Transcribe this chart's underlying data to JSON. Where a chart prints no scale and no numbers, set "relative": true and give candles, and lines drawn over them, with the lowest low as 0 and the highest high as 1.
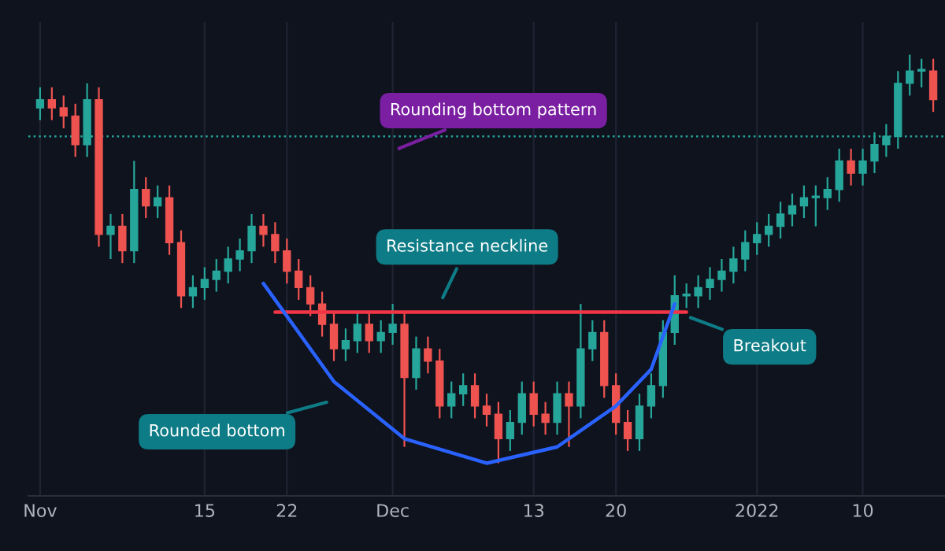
{
  "chart_data": {
    "type": "candlestick",
    "relative": true,
    "grid": "x",
    "legend": false,
    "tick_labels": "x",
    "x": [
      "2021-11-01",
      "2021-11-02",
      "2021-11-03",
      "2021-11-04",
      "2021-11-05",
      "2021-11-06",
      "2021-11-07",
      "2021-11-08",
      "2021-11-09",
      "2021-11-10",
      "2021-11-11",
      "2021-11-12",
      "2021-11-13",
      "2021-11-14",
      "2021-11-15",
      "2021-11-16",
      "2021-11-17",
      "2021-11-18",
      "2021-11-19",
      "2021-11-20",
      "2021-11-21",
      "2021-11-22",
      "2021-11-23",
      "2021-11-24",
      "2021-11-25",
      "2021-11-26",
      "2021-11-27",
      "2021-11-28",
      "2021-11-29",
      "2021-11-30",
      "2021-12-01",
      "2021-12-02",
      "2021-12-03",
      "2021-12-04",
      "2021-12-05",
      "2021-12-06",
      "2021-12-07",
      "2021-12-08",
      "2021-12-09",
      "2021-12-10",
      "2021-12-11",
      "2021-12-12",
      "2021-12-13",
      "2021-12-14",
      "2021-12-15",
      "2021-12-16",
      "2021-12-17",
      "2021-12-18",
      "2021-12-19",
      "2021-12-20",
      "2021-12-21",
      "2021-12-22",
      "2021-12-23",
      "2021-12-24",
      "2021-12-25",
      "2021-12-26",
      "2021-12-27",
      "2021-12-28",
      "2021-12-29",
      "2021-12-30",
      "2021-12-31",
      "2022-01-01",
      "2022-01-02",
      "2022-01-03",
      "2022-01-04",
      "2022-01-05",
      "2022-01-06",
      "2022-01-07",
      "2022-01-08",
      "2022-01-09",
      "2022-01-10",
      "2022-01-11",
      "2022-01-12",
      "2022-01-13",
      "2022-01-14",
      "2022-01-15",
      "2022-01-16"
    ],
    "ohlc": [
      [
        0.87,
        0.92,
        0.84,
        0.89
      ],
      [
        0.89,
        0.92,
        0.84,
        0.87
      ],
      [
        0.87,
        0.9,
        0.82,
        0.85
      ],
      [
        0.85,
        0.88,
        0.75,
        0.78
      ],
      [
        0.78,
        0.93,
        0.75,
        0.89
      ],
      [
        0.89,
        0.92,
        0.53,
        0.56
      ],
      [
        0.56,
        0.61,
        0.5,
        0.58
      ],
      [
        0.58,
        0.61,
        0.49,
        0.52
      ],
      [
        0.52,
        0.74,
        0.49,
        0.67
      ],
      [
        0.67,
        0.7,
        0.6,
        0.63
      ],
      [
        0.63,
        0.68,
        0.6,
        0.65
      ],
      [
        0.65,
        0.68,
        0.51,
        0.54
      ],
      [
        0.54,
        0.57,
        0.38,
        0.41
      ],
      [
        0.41,
        0.46,
        0.38,
        0.43
      ],
      [
        0.43,
        0.48,
        0.4,
        0.45
      ],
      [
        0.45,
        0.5,
        0.42,
        0.47
      ],
      [
        0.47,
        0.53,
        0.44,
        0.5
      ],
      [
        0.5,
        0.55,
        0.47,
        0.52
      ],
      [
        0.52,
        0.61,
        0.49,
        0.58
      ],
      [
        0.58,
        0.61,
        0.53,
        0.56
      ],
      [
        0.56,
        0.59,
        0.49,
        0.52
      ],
      [
        0.52,
        0.55,
        0.44,
        0.47
      ],
      [
        0.47,
        0.5,
        0.4,
        0.43
      ],
      [
        0.43,
        0.46,
        0.36,
        0.39
      ],
      [
        0.39,
        0.42,
        0.31,
        0.34
      ],
      [
        0.34,
        0.37,
        0.25,
        0.28
      ],
      [
        0.28,
        0.33,
        0.25,
        0.3
      ],
      [
        0.3,
        0.37,
        0.27,
        0.34
      ],
      [
        0.34,
        0.37,
        0.27,
        0.3
      ],
      [
        0.3,
        0.35,
        0.27,
        0.32
      ],
      [
        0.32,
        0.39,
        0.29,
        0.34
      ],
      [
        0.34,
        0.37,
        0.04,
        0.21
      ],
      [
        0.21,
        0.31,
        0.18,
        0.28
      ],
      [
        0.28,
        0.31,
        0.22,
        0.25
      ],
      [
        0.25,
        0.28,
        0.11,
        0.14
      ],
      [
        0.14,
        0.2,
        0.11,
        0.17
      ],
      [
        0.17,
        0.22,
        0.14,
        0.19
      ],
      [
        0.19,
        0.22,
        0.11,
        0.14
      ],
      [
        0.14,
        0.17,
        0.09,
        0.12
      ],
      [
        0.12,
        0.15,
        0.0,
        0.06
      ],
      [
        0.06,
        0.13,
        0.03,
        0.1
      ],
      [
        0.1,
        0.2,
        0.07,
        0.17
      ],
      [
        0.17,
        0.2,
        0.09,
        0.12
      ],
      [
        0.12,
        0.15,
        0.07,
        0.1
      ],
      [
        0.1,
        0.2,
        0.07,
        0.17
      ],
      [
        0.17,
        0.2,
        0.04,
        0.14
      ],
      [
        0.14,
        0.39,
        0.11,
        0.28
      ],
      [
        0.28,
        0.35,
        0.25,
        0.32
      ],
      [
        0.32,
        0.35,
        0.16,
        0.19
      ],
      [
        0.19,
        0.22,
        0.07,
        0.1
      ],
      [
        0.1,
        0.13,
        0.03,
        0.06
      ],
      [
        0.06,
        0.17,
        0.03,
        0.14
      ],
      [
        0.14,
        0.22,
        0.11,
        0.19
      ],
      [
        0.19,
        0.35,
        0.16,
        0.32
      ],
      [
        0.32,
        0.46,
        0.29,
        0.41
      ],
      [
        0.41,
        0.44,
        0.38,
        0.41
      ],
      [
        0.41,
        0.46,
        0.38,
        0.43
      ],
      [
        0.43,
        0.48,
        0.4,
        0.45
      ],
      [
        0.45,
        0.5,
        0.42,
        0.47
      ],
      [
        0.47,
        0.53,
        0.44,
        0.5
      ],
      [
        0.5,
        0.57,
        0.47,
        0.54
      ],
      [
        0.54,
        0.59,
        0.51,
        0.56
      ],
      [
        0.56,
        0.61,
        0.53,
        0.58
      ],
      [
        0.58,
        0.64,
        0.55,
        0.61
      ],
      [
        0.61,
        0.66,
        0.58,
        0.63
      ],
      [
        0.63,
        0.68,
        0.6,
        0.65
      ],
      [
        0.65,
        0.68,
        0.58,
        0.65
      ],
      [
        0.65,
        0.7,
        0.62,
        0.67
      ],
      [
        0.67,
        0.77,
        0.64,
        0.74
      ],
      [
        0.74,
        0.77,
        0.68,
        0.71
      ],
      [
        0.71,
        0.77,
        0.68,
        0.74
      ],
      [
        0.74,
        0.81,
        0.71,
        0.78
      ],
      [
        0.78,
        0.83,
        0.75,
        0.8
      ],
      [
        0.8,
        0.96,
        0.77,
        0.93
      ],
      [
        0.93,
        1.0,
        0.9,
        0.96
      ],
      [
        0.96,
        0.99,
        0.92,
        0.96
      ],
      [
        0.96,
        0.99,
        0.86,
        0.89
      ]
    ],
    "series": [
      {
        "type": "line",
        "color": "#f23645",
        "x": [
          "2021-11-21",
          "2021-12-26"
        ],
        "values": [
          0.37,
          0.37
        ]
      },
      {
        "type": "line",
        "color": "#2962ff",
        "x": [
          "2021-11-20",
          "2021-11-26",
          "2021-12-02",
          "2021-12-09",
          "2021-12-15",
          "2021-12-20",
          "2021-12-23",
          "2021-12-25"
        ],
        "values": [
          0.44,
          0.2,
          0.06,
          0.0,
          0.04,
          0.14,
          0.23,
          0.39
        ]
      }
    ],
    "ref_lines": [
      {
        "axis": "y",
        "value": 0.8,
        "label": null,
        "color": "#26a69a",
        "line_style": "dotted"
      }
    ],
    "xlim": [
      "2021-10-31",
      "2022-01-17"
    ],
    "xticks": [
      {
        "value": "2021-11-01",
        "label": "Nov"
      },
      {
        "value": "2021-11-15",
        "label": "15"
      },
      {
        "value": "2021-11-22",
        "label": "22"
      },
      {
        "value": "2021-12-01",
        "label": "Dec"
      },
      {
        "value": "2021-12-13",
        "label": "13"
      },
      {
        "value": "2021-12-20",
        "label": "20"
      },
      {
        "value": "2022-01-01",
        "label": "2022"
      },
      {
        "value": "2022-01-10",
        "label": "10"
      }
    ],
    "annotations": [
      "Rounding bottom pattern",
      "Resistance neckline",
      {
        "text": "Breakout",
        "x": "2021-12-26",
        "y": 0.36
      },
      "Rounded bottom"
    ]
  }
}
